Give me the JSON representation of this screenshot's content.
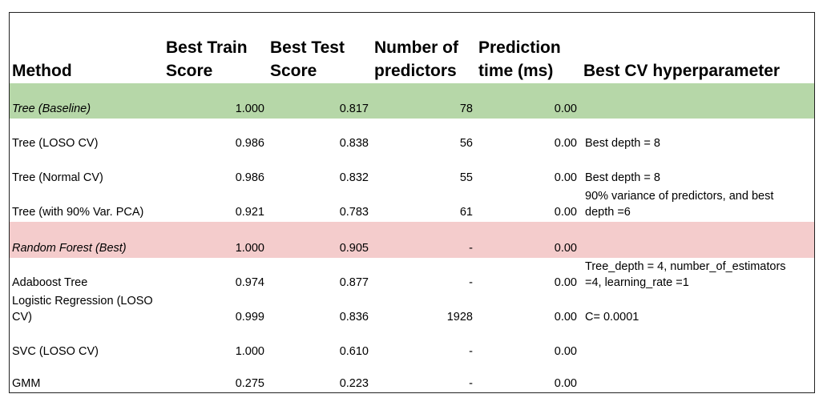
{
  "headers": {
    "method": "Method",
    "train_line1": "Best Train",
    "train_line2": "Score",
    "test_line1": "Best Test",
    "test_line2": "Score",
    "npred_line1": "Number of",
    "npred_line2": "predictors",
    "time_line1": "Prediction",
    "time_line2": "time  (ms)",
    "hyper": "Best CV hyperparameter"
  },
  "colors": {
    "baseline_highlight": "#b6d7a8",
    "best_highlight": "#f4cccc"
  },
  "rows": [
    {
      "method": "Tree (Baseline)",
      "train": "1.000",
      "test": "0.817",
      "npred": "78",
      "time": "0.00",
      "hyper": ""
    },
    {
      "method": "Tree (LOSO CV)",
      "train": "0.986",
      "test": "0.838",
      "npred": "56",
      "time": "0.00",
      "hyper": "Best depth = 8"
    },
    {
      "method": "Tree (Normal CV)",
      "train": "0.986",
      "test": "0.832",
      "npred": "55",
      "time": "0.00",
      "hyper": "Best depth = 8"
    },
    {
      "method": "Tree (with 90% Var. PCA)",
      "train": "0.921",
      "test": "0.783",
      "npred": "61",
      "time": "0.00",
      "hyper_line1": "90% variance of predictors, and best",
      "hyper_line2": "depth =6"
    },
    {
      "method": "Random Forest (Best)",
      "train": "1.000",
      "test": "0.905",
      "npred": "-",
      "time": "0.00",
      "hyper": ""
    },
    {
      "method": "Adaboost Tree",
      "train": "0.974",
      "test": "0.877",
      "npred": "-",
      "time": "0.00",
      "hyper_line1": "Tree_depth = 4, number_of_estimators",
      "hyper_line2": "=4, learning_rate =1"
    },
    {
      "method_line1": "Logistic Regression (LOSO",
      "method_line2": "CV)",
      "train": "0.999",
      "test": "0.836",
      "npred": "1928",
      "time": "0.00",
      "hyper": "C= 0.0001"
    },
    {
      "method": "SVC (LOSO CV)",
      "train": "1.000",
      "test": "0.610",
      "npred": "-",
      "time": "0.00",
      "hyper": ""
    },
    {
      "method": "GMM",
      "train": "0.275",
      "test": "0.223",
      "npred": "-",
      "time": "0.00",
      "hyper": ""
    }
  ]
}
